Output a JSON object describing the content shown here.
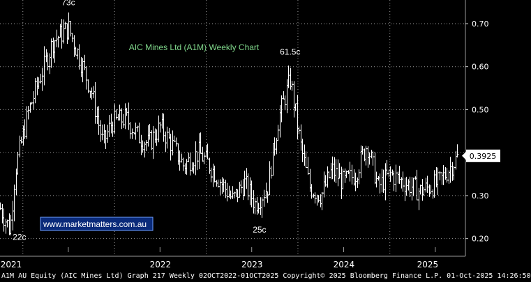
{
  "chart_data": {
    "type": "ohlc",
    "title": "AIC Mines Ltd (A1M) Weekly Chart",
    "watermark": "www.marketmatters.com.au",
    "ylim": [
      0.18,
      0.755
    ],
    "yticks": [
      "0.70",
      "0.60",
      "0.50",
      "0.40",
      "0.30",
      "0.20"
    ],
    "ytick_values": [
      0.7,
      0.6,
      0.5,
      0.4,
      0.3,
      0.2
    ],
    "last_price_label": "0.3925",
    "last_price": 0.3925,
    "xlim": [
      "2020-10-02",
      "2025-10-01"
    ],
    "year_labels": [
      {
        "label": "2021",
        "date": "2021-01-01"
      },
      {
        "label": "2022",
        "date": "2022-01-01"
      },
      {
        "label": "2023",
        "date": "2023-01-01"
      },
      {
        "label": "2024",
        "date": "2024-01-01"
      },
      {
        "label": "2025",
        "date": "2025-01-01"
      }
    ],
    "annotations": [
      {
        "text": "73c",
        "date": "2021-07-01",
        "value": 0.73
      },
      {
        "text": "22c",
        "date": "2020-11-15",
        "value": 0.22
      },
      {
        "text": "61.5c",
        "date": "2023-12-01",
        "value": 0.615
      },
      {
        "text": "25c",
        "date": "2023-08-01",
        "value": 0.25
      }
    ],
    "close_path": [
      [
        "2020-10-02",
        0.27
      ],
      [
        "2020-11-10",
        0.22
      ],
      [
        "2020-12-01",
        0.36
      ],
      [
        "2021-01-20",
        0.49
      ],
      [
        "2021-03-01",
        0.56
      ],
      [
        "2021-05-01",
        0.66
      ],
      [
        "2021-07-01",
        0.69
      ],
      [
        "2021-08-15",
        0.62
      ],
      [
        "2021-10-01",
        0.54
      ],
      [
        "2021-11-15",
        0.42
      ],
      [
        "2021-12-20",
        0.47
      ],
      [
        "2022-02-15",
        0.48
      ],
      [
        "2022-04-01",
        0.44
      ],
      [
        "2022-05-15",
        0.42
      ],
      [
        "2022-07-01",
        0.46
      ],
      [
        "2022-08-15",
        0.42
      ],
      [
        "2022-10-01",
        0.37
      ],
      [
        "2022-12-01",
        0.4
      ],
      [
        "2023-01-15",
        0.37
      ],
      [
        "2023-03-01",
        0.33
      ],
      [
        "2023-04-15",
        0.29
      ],
      [
        "2023-06-01",
        0.33
      ],
      [
        "2023-07-15",
        0.28
      ],
      [
        "2023-09-01",
        0.32
      ],
      [
        "2023-10-15",
        0.48
      ],
      [
        "2023-12-01",
        0.57
      ],
      [
        "2024-01-10",
        0.42
      ],
      [
        "2024-02-15",
        0.32
      ],
      [
        "2024-04-01",
        0.3
      ],
      [
        "2024-05-15",
        0.36
      ],
      [
        "2024-07-01",
        0.33
      ],
      [
        "2024-08-15",
        0.35
      ],
      [
        "2024-10-01",
        0.42
      ],
      [
        "2024-11-15",
        0.32
      ],
      [
        "2025-01-01",
        0.35
      ],
      [
        "2025-03-01",
        0.33
      ],
      [
        "2025-05-01",
        0.31
      ],
      [
        "2025-07-15",
        0.33
      ],
      [
        "2025-08-20",
        0.36
      ],
      [
        "2025-10-01",
        0.3925
      ]
    ]
  },
  "footer_text": "A1M AU Equity (AIC Mines Ltd) Graph 217  Weekly 02OCT2022-01OCT2025  Copyright© 2025 Bloomberg Finance L.P.  01-Oct-2025 14:26:50"
}
